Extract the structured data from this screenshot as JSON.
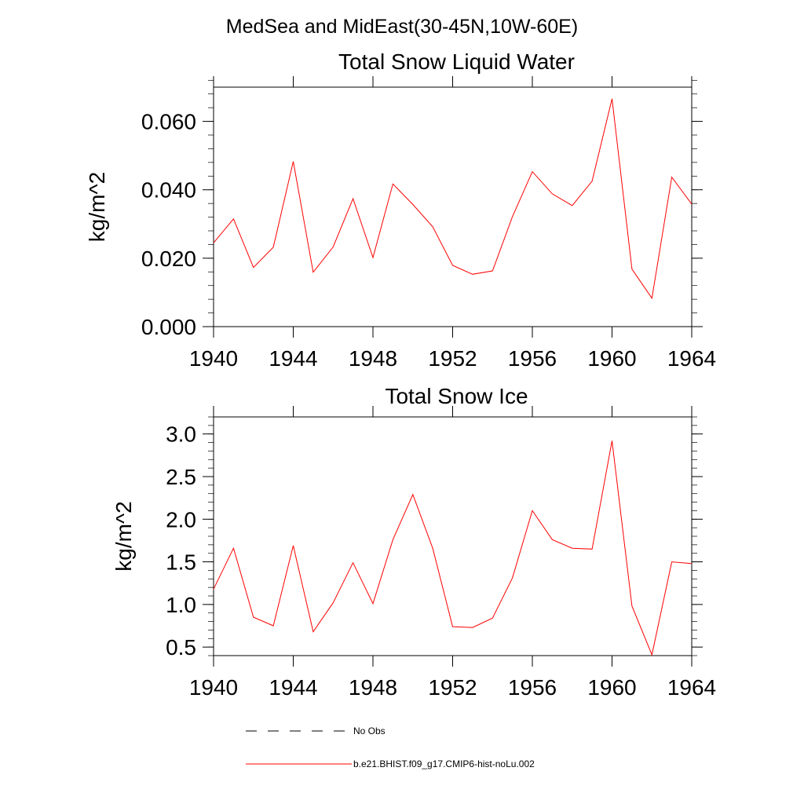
{
  "figure": {
    "title": "MedSea and MidEast(30-45N,10W-60E)"
  },
  "chart_data": [
    {
      "type": "line",
      "title": "Total Snow Liquid Water",
      "xlabel": "",
      "ylabel": "kg/m^2",
      "xlim": [
        1940,
        1964
      ],
      "ylim": [
        0,
        0.07
      ],
      "x_ticks": [
        1940,
        1944,
        1948,
        1952,
        1956,
        1960,
        1964
      ],
      "y_ticks": [
        0,
        0.02,
        0.04,
        0.06
      ],
      "y_tick_labels": [
        "0.000",
        "0.020",
        "0.040",
        "0.060"
      ],
      "y_minor_step": 0.004,
      "x_minor_step": 1,
      "x": [
        1940,
        1941,
        1942,
        1943,
        1944,
        1945,
        1946,
        1947,
        1948,
        1949,
        1950,
        1951,
        1952,
        1953,
        1954,
        1955,
        1956,
        1957,
        1958,
        1959,
        1960,
        1961,
        1962,
        1963,
        1964
      ],
      "series": [
        {
          "name": "b.e21.BHIST.f09_g17.CMIP6-hist-noLu.002",
          "color": "#ff0000",
          "values": [
            0.0245,
            0.0315,
            0.0173,
            0.0232,
            0.0483,
            0.0159,
            0.0233,
            0.0374,
            0.0202,
            0.0417,
            0.0357,
            0.0292,
            0.0179,
            0.0153,
            0.0163,
            0.0321,
            0.0453,
            0.0388,
            0.0354,
            0.0425,
            0.0666,
            0.0168,
            0.0083,
            0.0437,
            0.0358
          ]
        }
      ]
    },
    {
      "type": "line",
      "title": "Total Snow Ice",
      "xlabel": "",
      "ylabel": "kg/m^2",
      "xlim": [
        1940,
        1964
      ],
      "ylim": [
        0.4,
        3.2
      ],
      "x_ticks": [
        1940,
        1944,
        1948,
        1952,
        1956,
        1960,
        1964
      ],
      "y_ticks": [
        0.5,
        1.0,
        1.5,
        2.0,
        2.5,
        3.0
      ],
      "y_tick_labels": [
        "0.5",
        "1.0",
        "1.5",
        "2.0",
        "2.5",
        "3.0"
      ],
      "y_minor_step": 0.1,
      "x_minor_step": 1,
      "x": [
        1940,
        1941,
        1942,
        1943,
        1944,
        1945,
        1946,
        1947,
        1948,
        1949,
        1950,
        1951,
        1952,
        1953,
        1954,
        1955,
        1956,
        1957,
        1958,
        1959,
        1960,
        1961,
        1962,
        1963,
        1964
      ],
      "series": [
        {
          "name": "b.e21.BHIST.f09_g17.CMIP6-hist-noLu.002",
          "color": "#ff0000",
          "values": [
            1.18,
            1.66,
            0.85,
            0.75,
            1.69,
            0.68,
            1.02,
            1.49,
            1.01,
            1.76,
            2.29,
            1.66,
            0.74,
            0.73,
            0.84,
            1.31,
            2.1,
            1.76,
            1.66,
            1.65,
            2.92,
            0.98,
            0.41,
            1.5,
            1.48
          ]
        }
      ]
    }
  ],
  "legend": {
    "placement": "bottom",
    "items": [
      {
        "label": "No Obs",
        "color": "#000000",
        "dash": "dashed"
      },
      {
        "label": "b.e21.BHIST.f09_g17.CMIP6-hist-noLu.002",
        "color": "#ff0000",
        "dash": "solid"
      }
    ]
  }
}
